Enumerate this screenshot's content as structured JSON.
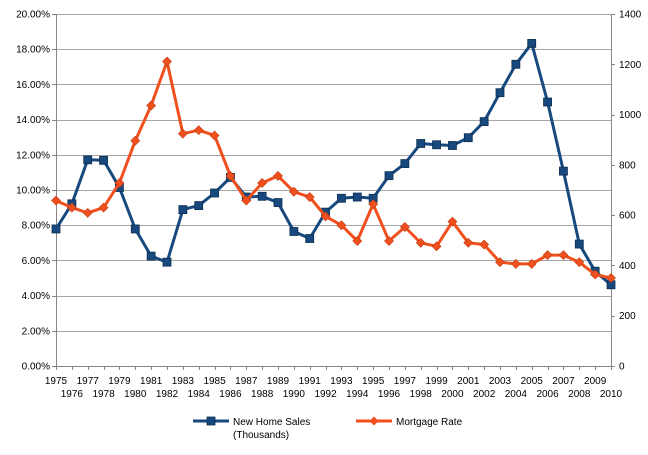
{
  "chart_data": {
    "type": "line",
    "title": "",
    "xlabel": "",
    "ylabel_left": "",
    "ylabel_right": "",
    "grid": "horizontal",
    "legend_position": "bottom",
    "x": [
      1975,
      1976,
      1977,
      1978,
      1979,
      1980,
      1981,
      1982,
      1983,
      1984,
      1985,
      1986,
      1987,
      1988,
      1989,
      1990,
      1991,
      1992,
      1993,
      1994,
      1995,
      1996,
      1997,
      1998,
      1999,
      2000,
      2001,
      2002,
      2003,
      2004,
      2005,
      2006,
      2007,
      2008,
      2009,
      2010
    ],
    "x_ticks_row1": [
      "1975",
      "1977",
      "1979",
      "1981",
      "1983",
      "1985",
      "1987",
      "1989",
      "1991",
      "1993",
      "1995",
      "1997",
      "1999",
      "2001",
      "2003",
      "2005",
      "2007",
      "2009"
    ],
    "x_ticks_row2": [
      "1976",
      "1978",
      "1980",
      "1982",
      "1984",
      "1986",
      "1988",
      "1990",
      "1992",
      "1994",
      "1996",
      "1998",
      "2000",
      "2002",
      "2004",
      "2006",
      "2008",
      "2010"
    ],
    "y_left": {
      "min": 0,
      "max": 20,
      "step": 2,
      "tick_labels": [
        "0.00%",
        "2.00%",
        "4.00%",
        "6.00%",
        "8.00%",
        "10.00%",
        "12.00%",
        "14.00%",
        "16.00%",
        "18.00%",
        "20.00%"
      ]
    },
    "y_right": {
      "min": 0,
      "max": 1400,
      "step": 200,
      "tick_labels": [
        "0",
        "200",
        "400",
        "600",
        "800",
        "1000",
        "1200",
        "1400"
      ]
    },
    "series": [
      {
        "name": "New Home Sales (Thousands)",
        "legend_lines": [
          "New Home Sales",
          "(Thousands)"
        ],
        "axis": "right",
        "color": "#17497e",
        "marker": "square",
        "values": [
          545,
          645,
          820,
          818,
          710,
          545,
          437,
          413,
          622,
          638,
          688,
          750,
          672,
          675,
          650,
          535,
          507,
          612,
          667,
          672,
          667,
          757,
          805,
          885,
          880,
          877,
          908,
          972,
          1087,
          1200,
          1283,
          1050,
          775,
          485,
          377,
          323
        ]
      },
      {
        "name": "Mortgage Rate",
        "legend_lines": [
          "Mortgage Rate"
        ],
        "axis": "left",
        "color": "#f0501e",
        "marker": "diamond",
        "values": [
          9.4,
          9.0,
          8.7,
          9.0,
          10.4,
          12.8,
          14.8,
          17.3,
          13.2,
          13.4,
          13.1,
          10.8,
          9.4,
          10.4,
          10.8,
          9.9,
          9.6,
          8.5,
          8.0,
          7.1,
          9.2,
          7.1,
          7.9,
          7.0,
          6.8,
          8.2,
          7.0,
          6.9,
          5.9,
          5.8,
          5.8,
          6.3,
          6.3,
          5.9,
          5.2,
          5.0
        ]
      }
    ]
  }
}
